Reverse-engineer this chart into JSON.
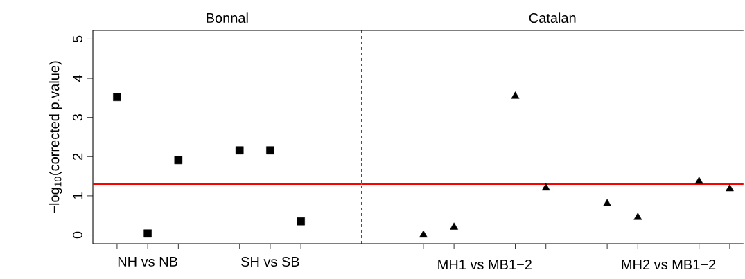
{
  "chart_data": [
    {
      "type": "scatter",
      "title": "Bonnal",
      "ylabel": "−log$_{10}$(corrected p.value)",
      "categories": [
        null,
        "NH vs NB",
        null,
        null,
        null,
        "SH vs SB",
        null
      ],
      "series": [
        {
          "color": "#000000",
          "marker": "square",
          "values": [
            3.52,
            0.04,
            1.91,
            null,
            2.16,
            2.16,
            0.35
          ]
        }
      ],
      "ylim": [
        -0.22,
        5.22
      ],
      "yticks": [
        0,
        1,
        2,
        3,
        4,
        5
      ],
      "ref_lines": [
        {
          "axis": "y",
          "value": 1.3,
          "color": "#ff0000"
        }
      ]
    },
    {
      "type": "scatter",
      "title": "Catalan",
      "categories": [
        null,
        null,
        "MH1 vs MB1−2",
        null,
        null,
        null,
        null,
        null,
        "MH2 vs MB1−2",
        null,
        null
      ],
      "series": [
        {
          "color": "#000000",
          "marker": "triangle",
          "values": [
            0.0,
            0.2,
            null,
            3.54,
            1.2,
            null,
            0.8,
            0.45,
            null,
            1.37,
            1.18
          ]
        }
      ],
      "ylim": [
        -0.22,
        5.22
      ],
      "yticks": [
        0,
        1,
        2,
        3,
        4,
        5
      ],
      "tick_labels": "x",
      "ref_lines": [
        {
          "axis": "y",
          "value": 1.3,
          "color": "#ff0000"
        }
      ]
    }
  ]
}
